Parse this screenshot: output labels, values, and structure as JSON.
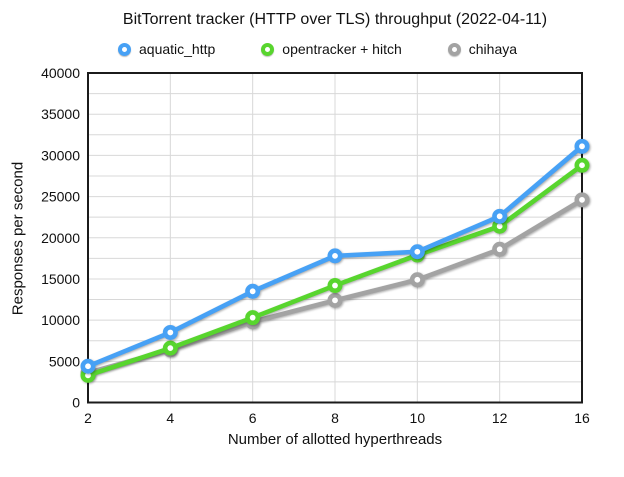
{
  "title": "BitTorrent tracker (HTTP over TLS) throughput (2022-04-11)",
  "legend": [
    {
      "label": "aquatic_http",
      "color": "#47a1f5"
    },
    {
      "label": "opentracker + hitch",
      "color": "#58d52e"
    },
    {
      "label": "chihaya",
      "color": "#a3a3a3"
    }
  ],
  "chart_data": {
    "type": "line",
    "title": "BitTorrent tracker (HTTP over TLS) throughput (2022-04-11)",
    "xlabel": "Number of allotted hyperthreads",
    "ylabel": "Responses per second",
    "x": [
      2,
      4,
      6,
      8,
      10,
      12,
      16
    ],
    "x_tick_labels": [
      "2",
      "4",
      "6",
      "8",
      "10",
      "12",
      "16"
    ],
    "x_spacing": "categorical-equal",
    "ylim": [
      0,
      40000
    ],
    "y_tick_labels": [
      "0",
      "5000",
      "10000",
      "15000",
      "20000",
      "25000",
      "30000",
      "35000",
      "40000"
    ],
    "grid": true,
    "grid_step": 2500,
    "grid_color": "#d8d8d8",
    "frame_color": "#1b1b1b",
    "legend_position": "top",
    "marker_style": "open-circle",
    "series": [
      {
        "name": "aquatic_http",
        "color": "#47a1f5",
        "values": [
          4400,
          8500,
          13500,
          17800,
          18300,
          22600,
          31100
        ]
      },
      {
        "name": "opentracker + hitch",
        "color": "#58d52e",
        "values": [
          3300,
          6600,
          10300,
          14200,
          17900,
          21400,
          28800
        ]
      },
      {
        "name": "chihaya",
        "color": "#a3a3a3",
        "values": [
          3600,
          6400,
          9800,
          12400,
          14900,
          18600,
          24600
        ]
      }
    ]
  }
}
